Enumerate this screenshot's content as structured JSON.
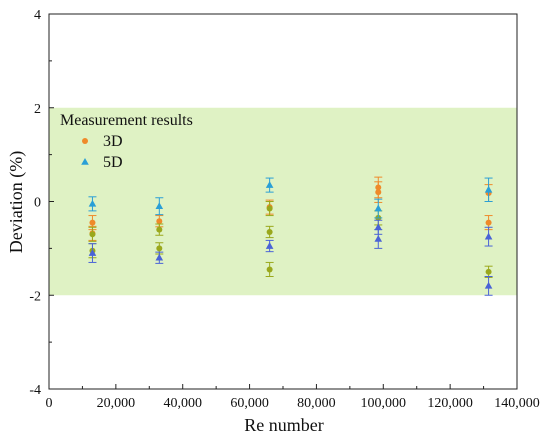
{
  "chart_data": {
    "type": "scatter",
    "xlabel": "Re number",
    "ylabel": "Deviation (%)",
    "xlim": [
      0,
      140000
    ],
    "ylim": [
      -4,
      4
    ],
    "x_ticks": [
      "0",
      "20,000",
      "40,000",
      "60,000",
      "80,000",
      "100,000",
      "120,000",
      "140,000"
    ],
    "y_ticks": [
      "-4",
      "-2",
      "0",
      "2",
      "4"
    ],
    "x_tick_values": [
      0,
      20000,
      40000,
      60000,
      80000,
      100000,
      120000,
      140000
    ],
    "y_tick_values": [
      -4,
      -2,
      0,
      2,
      4
    ],
    "band": {
      "from": -2,
      "to": 2,
      "color": "#dff2c4"
    },
    "legend": {
      "title": "Measurement results",
      "position": "top-left"
    },
    "series": [
      {
        "name": "3D",
        "marker": "circle",
        "color": "#ef8a2a",
        "errorbar_color": "#ef8a2a",
        "points": [
          {
            "x": 13000,
            "y": -0.45,
            "err": 0.15
          },
          {
            "x": 13000,
            "y": -0.68,
            "err": 0.15
          },
          {
            "x": 33000,
            "y": -0.42,
            "err": 0.12
          },
          {
            "x": 66000,
            "y": -0.12,
            "err": 0.15
          },
          {
            "x": 98500,
            "y": 0.3,
            "err": 0.22
          },
          {
            "x": 98500,
            "y": 0.2,
            "err": 0.22
          },
          {
            "x": 131500,
            "y": 0.18,
            "err": 0.18
          },
          {
            "x": 131500,
            "y": -0.45,
            "err": 0.15
          }
        ]
      },
      {
        "name": "",
        "marker": "circle",
        "color": "#9aa81c",
        "errorbar_color": "#9aa81c",
        "points": [
          {
            "x": 13000,
            "y": -0.7,
            "err": 0.15
          },
          {
            "x": 13000,
            "y": -1.05,
            "err": 0.15
          },
          {
            "x": 33000,
            "y": -0.6,
            "err": 0.12
          },
          {
            "x": 33000,
            "y": -1.0,
            "err": 0.12
          },
          {
            "x": 66000,
            "y": -0.15,
            "err": 0.15
          },
          {
            "x": 66000,
            "y": -0.65,
            "err": 0.12
          },
          {
            "x": 66000,
            "y": -1.45,
            "err": 0.15
          },
          {
            "x": 98500,
            "y": -0.35,
            "err": 0.15
          },
          {
            "x": 131500,
            "y": -1.5,
            "err": 0.12
          }
        ]
      },
      {
        "name": "5D",
        "marker": "triangle",
        "color": "#2a9fd6",
        "errorbar_color": "#2a9fd6",
        "points": [
          {
            "x": 13000,
            "y": -0.05,
            "err": 0.15
          },
          {
            "x": 33000,
            "y": -0.1,
            "err": 0.18
          },
          {
            "x": 66000,
            "y": 0.35,
            "err": 0.15
          },
          {
            "x": 98500,
            "y": -0.15,
            "err": 0.2
          },
          {
            "x": 131500,
            "y": 0.25,
            "err": 0.25
          }
        ]
      },
      {
        "name": "",
        "marker": "triangle",
        "color": "#4a63d6",
        "errorbar_color": "#4a63d6",
        "points": [
          {
            "x": 13000,
            "y": -1.1,
            "err": 0.2
          },
          {
            "x": 33000,
            "y": -1.2,
            "err": 0.12
          },
          {
            "x": 66000,
            "y": -0.95,
            "err": 0.12
          },
          {
            "x": 98500,
            "y": -0.55,
            "err": 0.15
          },
          {
            "x": 98500,
            "y": -0.8,
            "err": 0.2
          },
          {
            "x": 131500,
            "y": -0.75,
            "err": 0.2
          },
          {
            "x": 131500,
            "y": -1.8,
            "err": 0.2
          }
        ]
      }
    ]
  }
}
